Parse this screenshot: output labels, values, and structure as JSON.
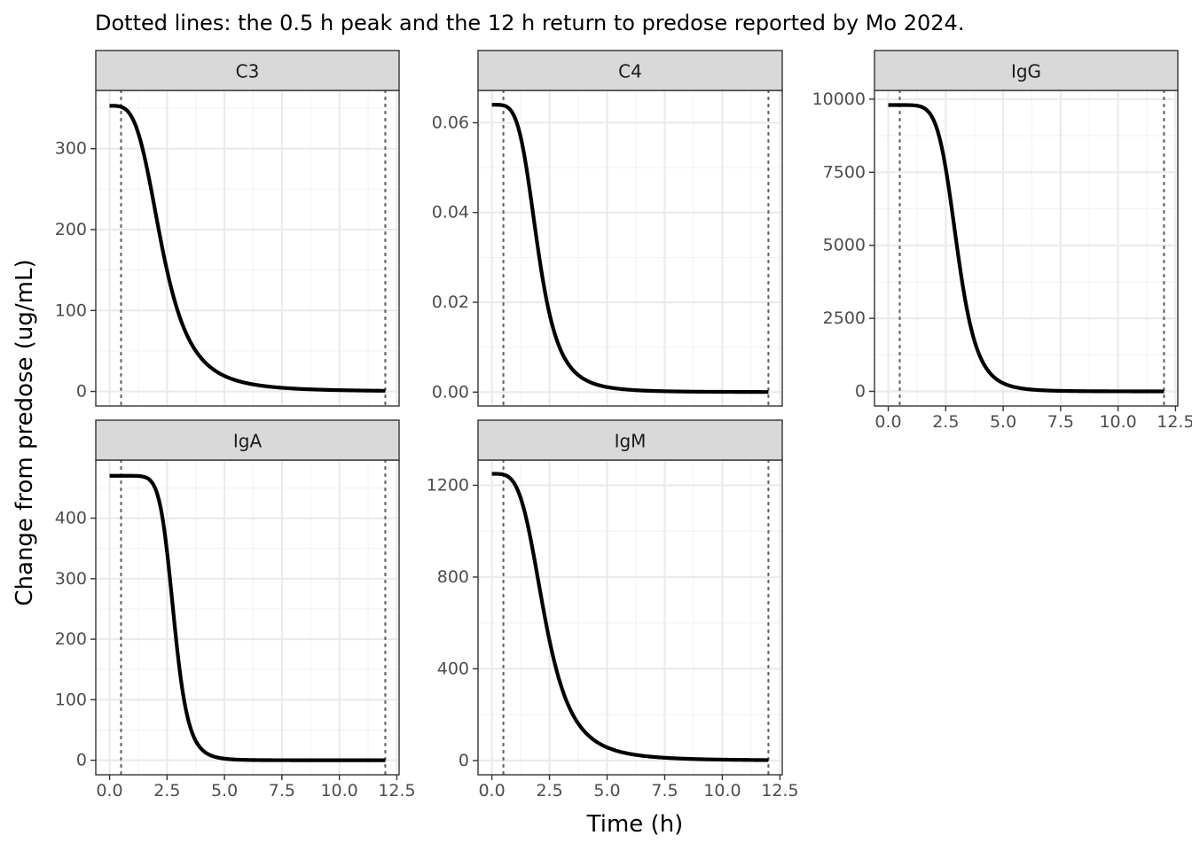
{
  "chart_data": {
    "type": "line",
    "title": "Dotted lines: the 0.5 h peak and the 12 h return to predose reported by Mo 2024.",
    "xlabel": "Time (h)",
    "ylabel": "Change from predose (ug/mL)",
    "xlim": [
      -0.6,
      12.6
    ],
    "x_ticks": [
      0,
      2.5,
      5,
      7.5,
      10,
      12.5
    ],
    "x_tick_labels": [
      "0.0",
      "2.5",
      "5.0",
      "7.5",
      "10.0",
      "12.5"
    ],
    "reference_lines_x": [
      0.5,
      12
    ],
    "reference_line_style": "dotted",
    "grid": true,
    "facets": [
      {
        "name": "C3",
        "ylim": [
          -18,
          372
        ],
        "y_ticks": [
          0,
          100,
          200,
          300
        ],
        "y_tick_labels": [
          "0",
          "100",
          "200",
          "300"
        ],
        "x_axis_labels_shown": false,
        "curve": {
          "plateau": 353,
          "x50": 2.3,
          "steepness": 1.6
        }
      },
      {
        "name": "C4",
        "ylim": [
          -0.0031,
          0.0672
        ],
        "y_ticks": [
          0,
          0.02,
          0.04,
          0.06
        ],
        "y_tick_labels": [
          "0.00",
          "0.02",
          "0.04",
          "0.06"
        ],
        "x_axis_labels_shown": false,
        "curve": {
          "plateau": 0.064,
          "x50": 2.0,
          "steepness": 2.2
        }
      },
      {
        "name": "IgG",
        "ylim": [
          -500,
          10300
        ],
        "y_ticks": [
          0,
          2500,
          5000,
          7500,
          10000
        ],
        "y_tick_labels": [
          "0",
          "2500",
          "5000",
          "7500",
          "10000"
        ],
        "x_axis_labels_shown": true,
        "curve": {
          "plateau": 9800,
          "x50": 3.0,
          "steepness": 2.3
        }
      },
      {
        "name": "IgA",
        "ylim": [
          -24,
          496
        ],
        "y_ticks": [
          0,
          100,
          200,
          300,
          400
        ],
        "y_tick_labels": [
          "0",
          "100",
          "200",
          "300",
          "400"
        ],
        "x_axis_labels_shown": true,
        "curve": {
          "plateau": 470,
          "x50": 2.8,
          "steepness": 3.2
        }
      },
      {
        "name": "IgM",
        "ylim": [
          -62,
          1310
        ],
        "y_ticks": [
          0,
          400,
          800,
          1200
        ],
        "y_tick_labels": [
          "0",
          "400",
          "800",
          "1200"
        ],
        "x_axis_labels_shown": true,
        "curve": {
          "plateau": 1250,
          "x50": 2.3,
          "steepness": 1.7
        }
      }
    ]
  }
}
